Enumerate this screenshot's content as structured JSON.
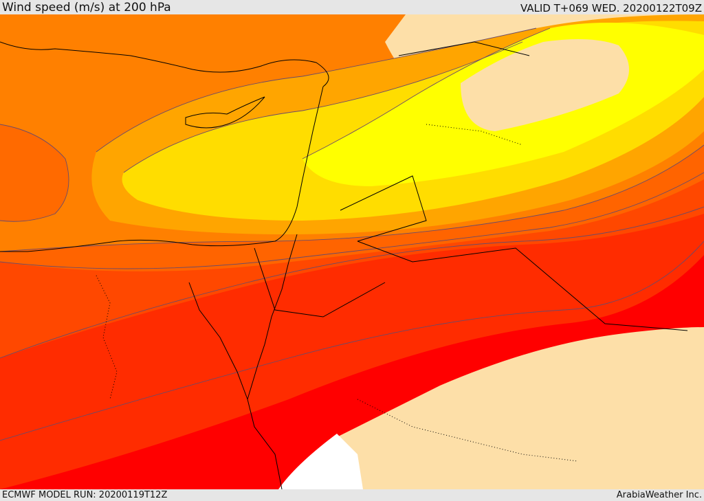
{
  "header": {
    "title": "Wind speed (m/s) at 200 hPa",
    "valid": "VALID T+069 WED. 20200122T09Z"
  },
  "footer": {
    "model_run": "ECMWF MODEL RUN: 20200119T12Z",
    "credit": "ArabiaWeather Inc."
  },
  "map": {
    "colors": {
      "land_bg": "#fddfa8",
      "sea_white": "#ffffff",
      "band_yellow": "#ffff00",
      "band_gold": "#ffdd00",
      "band_amber": "#ffa500",
      "band_orange": "#ff8000",
      "band_dark_orange": "#ff6400",
      "band_orange_red": "#ff4800",
      "band_red_orange": "#ff2c00",
      "band_red": "#ff0000",
      "contour": "#6a4a6a",
      "coast": "#000000"
    }
  }
}
